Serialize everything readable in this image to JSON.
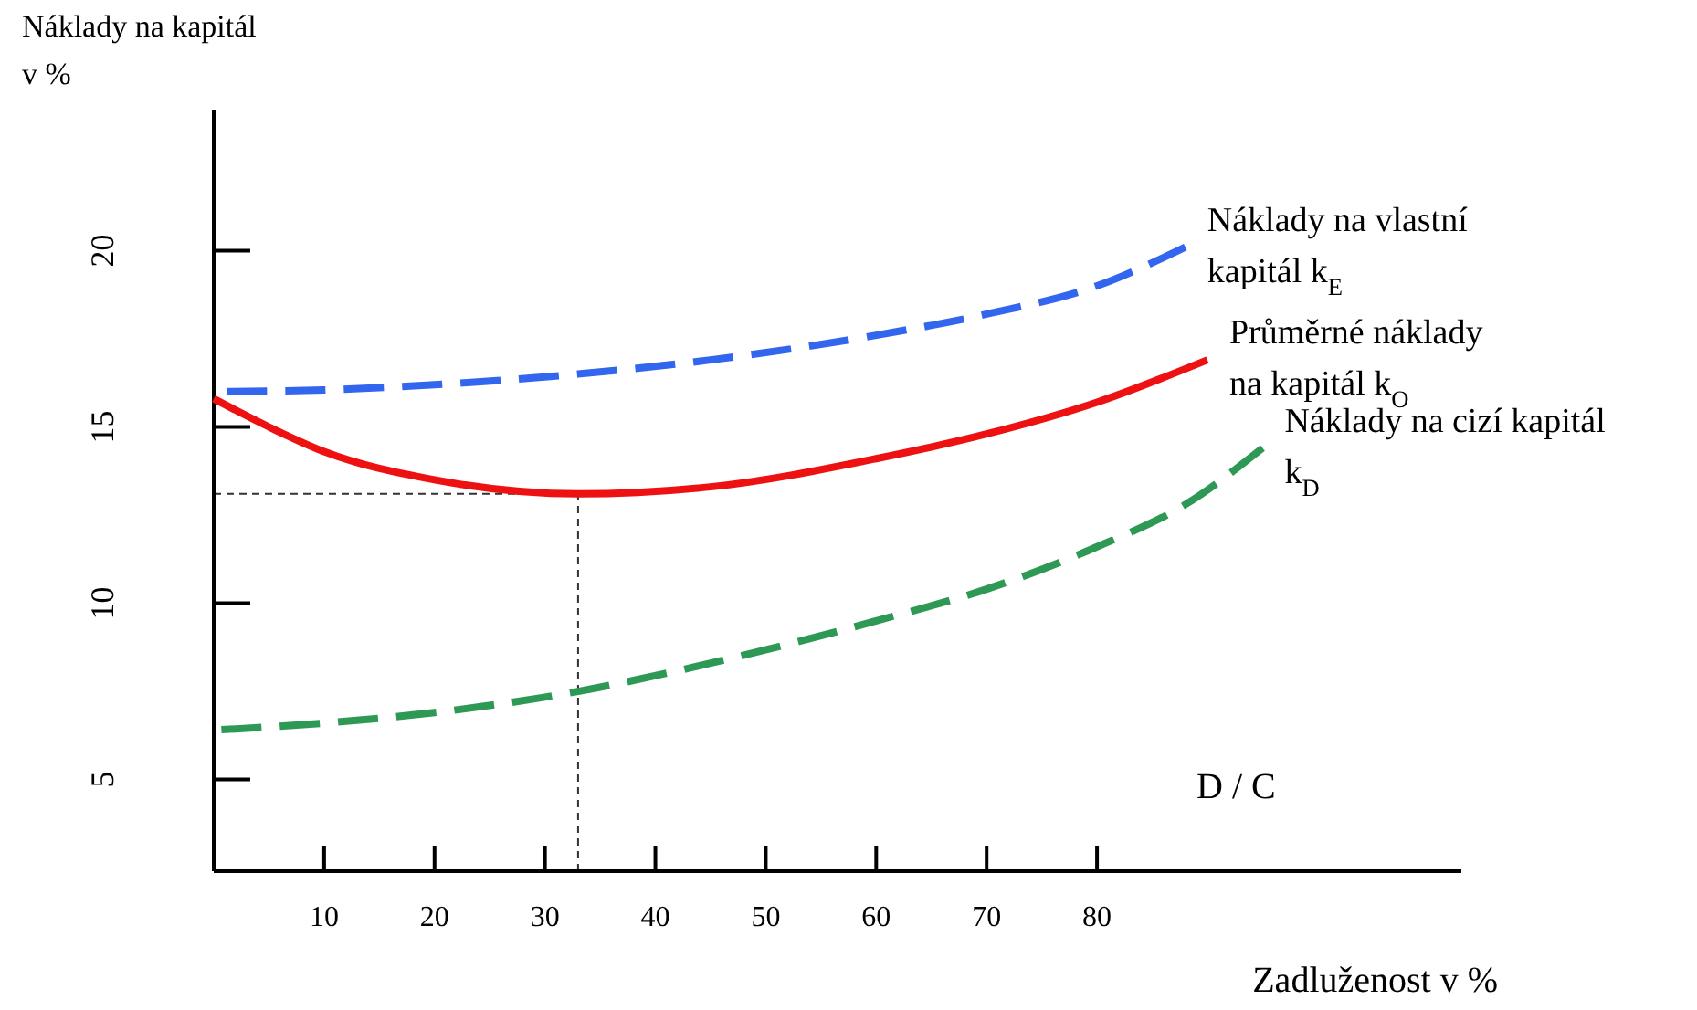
{
  "chart_data": {
    "type": "line",
    "xlabel": "Zadluženost v %",
    "ylabel": "Náklady na kapitál\nv %",
    "xlim": [
      0,
      113
    ],
    "ylim": [
      2.4,
      24
    ],
    "xticks": [
      10,
      20,
      30,
      40,
      50,
      60,
      70,
      80
    ],
    "yticks": [
      5,
      10,
      15,
      20
    ],
    "marker": "none",
    "grid": false,
    "series": [
      {
        "name": "Náklady na vlastní\nkapitál k$_{E}$",
        "color": "#3366ee",
        "line_style": "dashed",
        "x": [
          0,
          10,
          20,
          33,
          45,
          60,
          70,
          80,
          88
        ],
        "values": [
          16,
          16.05,
          16.2,
          16.5,
          16.9,
          17.6,
          18.2,
          19.0,
          20.1
        ]
      },
      {
        "name": "Průměrné náklady\nna kapitál k$_{O}$",
        "color": "#ee1111",
        "line_style": "solid",
        "x": [
          0,
          5,
          10,
          20,
          33,
          45,
          60,
          70,
          80,
          90
        ],
        "values": [
          15.8,
          15.0,
          14.3,
          13.5,
          13.1,
          13.3,
          14.1,
          14.8,
          15.7,
          16.9
        ]
      },
      {
        "name": "Náklady na cizí kapitál\nk$_{D}$",
        "color": "#2e9955",
        "line_style": "dashed",
        "x": [
          0,
          10,
          20,
          33,
          45,
          60,
          70,
          80,
          88,
          95
        ],
        "values": [
          6.4,
          6.6,
          6.9,
          7.5,
          8.3,
          9.5,
          10.4,
          11.6,
          12.8,
          14.4
        ]
      }
    ],
    "ref_lines": [
      {
        "axis": "y",
        "value": 13.1,
        "label": null,
        "color": "#333333",
        "line_style": "dashed"
      },
      {
        "axis": "x",
        "value": 33,
        "label": null,
        "color": "#333333",
        "line_style": "dashed"
      }
    ],
    "annotations": [
      "D / C"
    ]
  }
}
